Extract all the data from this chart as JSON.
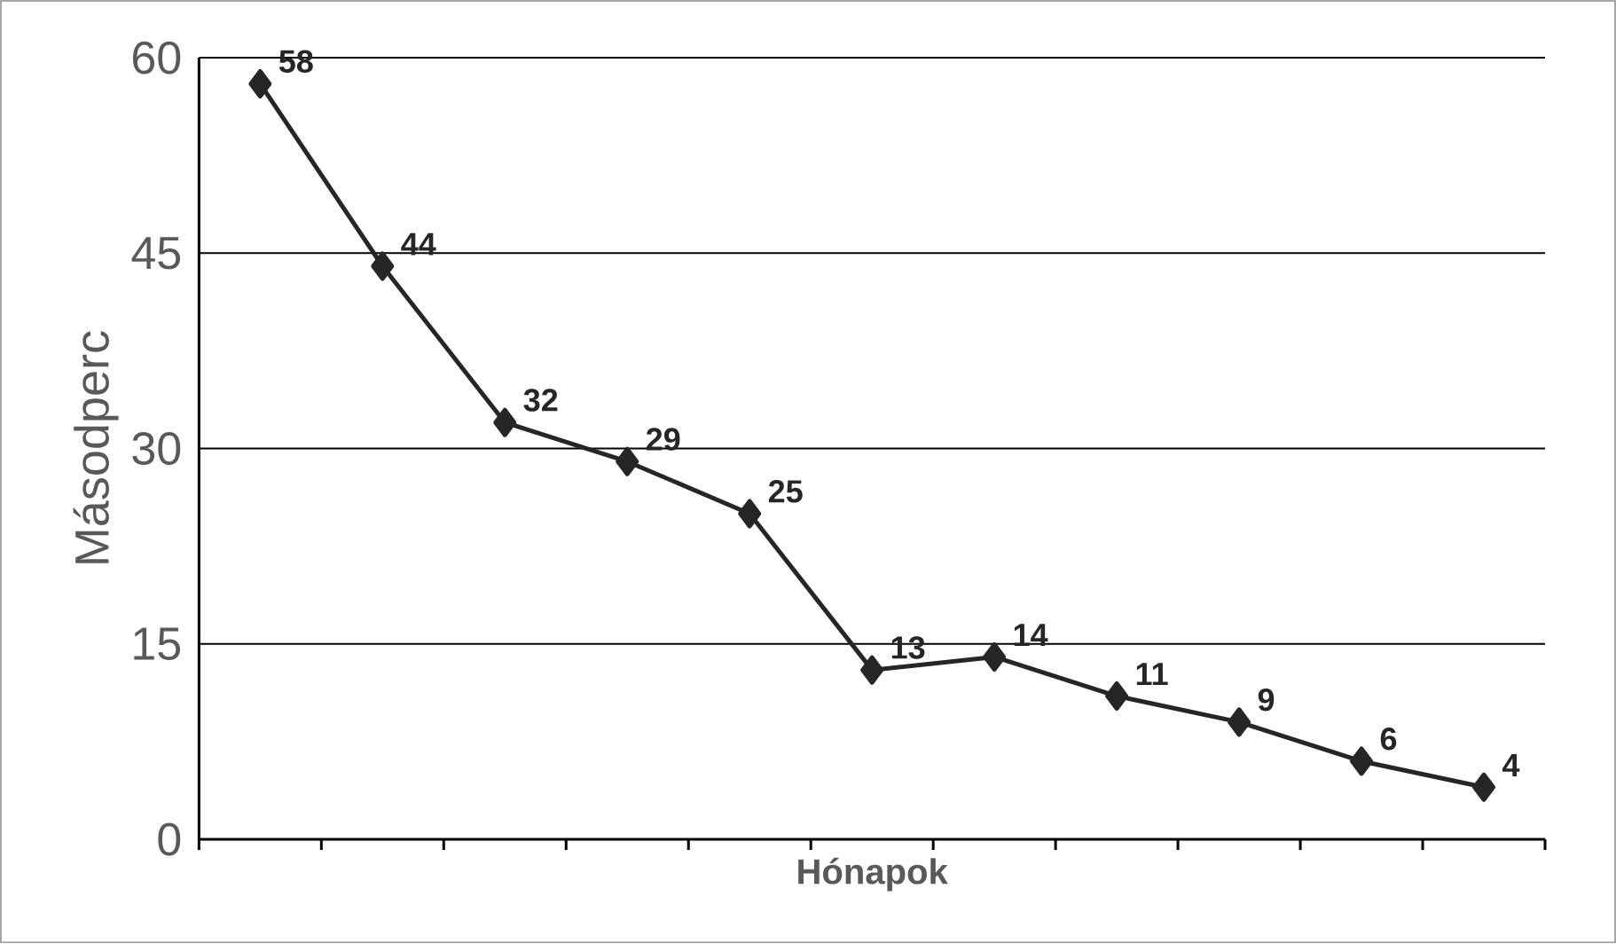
{
  "chart_data": {
    "type": "line",
    "xlabel": "**Hónapok**",
    "ylabel": "Másodperc",
    "categories": [
      null,
      null,
      null,
      null,
      null,
      null,
      null,
      null,
      null,
      null,
      null
    ],
    "values": [
      58,
      44,
      32,
      29,
      25,
      13,
      14,
      11,
      9,
      6,
      4
    ],
    "color": "#262626",
    "marker": "diamond",
    "line_style": "solid",
    "data_labels": true,
    "ylim": [
      0,
      60
    ],
    "yticks": [
      0,
      15,
      30,
      45,
      60
    ],
    "grid": "y"
  }
}
